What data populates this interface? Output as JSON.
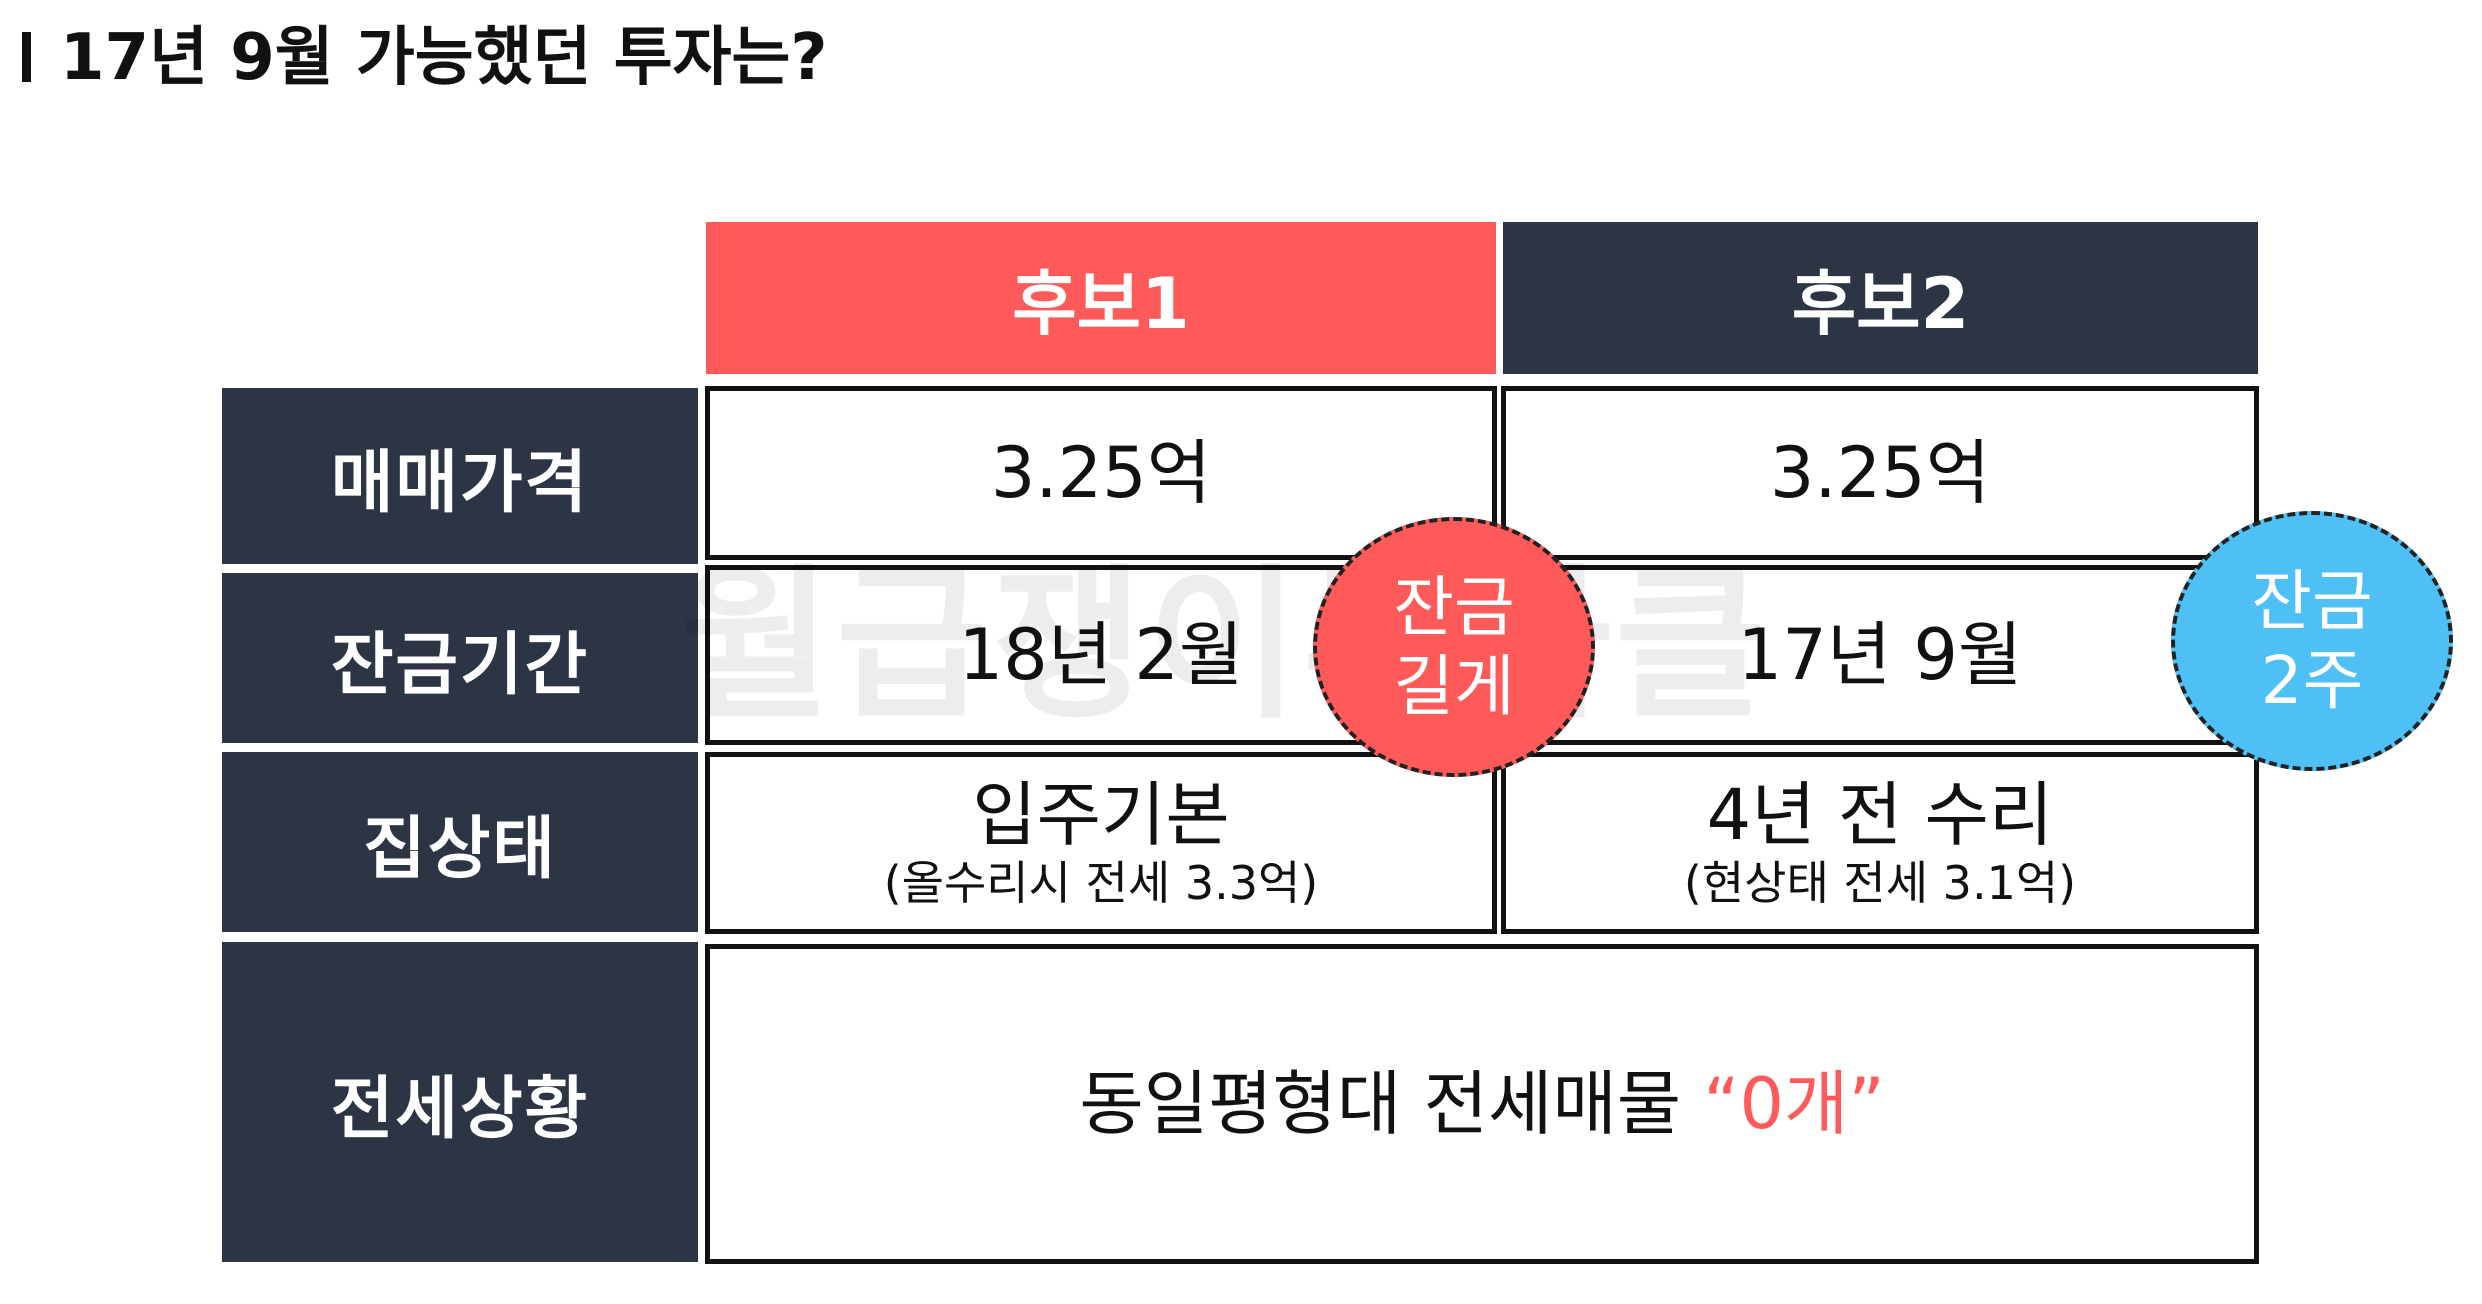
{
  "title": "17년 9월 가능했던 투자는?",
  "columns": {
    "c1": "후보1",
    "c2": "후보2"
  },
  "rows": {
    "price": {
      "label": "매매가격",
      "c1": "3.25억",
      "c2": "3.25억"
    },
    "balance": {
      "label": "잔금기간",
      "c1": "18년 2월",
      "c2": "17년 9월"
    },
    "house": {
      "label": "집상태",
      "c1": "입주기본",
      "c1_sub": "(올수리시 전세 3.3억)",
      "c2": "4년 전 수리",
      "c2_sub": "(현상태 전세 3.1억)"
    },
    "lease": {
      "label": "전세상황",
      "text": "동일평형대 전세매물",
      "highlight": "“0개”"
    }
  },
  "badges": {
    "c1": {
      "line1": "잔금",
      "line2": "길게"
    },
    "c2": {
      "line1": "잔금",
      "line2": "2주"
    }
  },
  "watermark": "월급쟁이투자클",
  "colors": {
    "accent_red": "#ff5a5a",
    "navy": "#2d3444",
    "accent_blue": "#4ec0f5"
  }
}
